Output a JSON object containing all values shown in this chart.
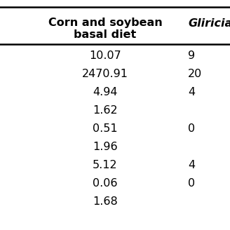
{
  "col1_header_line1": "Corn and soybean",
  "col1_header_line2": "basal diet",
  "col2_header": "Gliricia",
  "col1_values": [
    "10.07",
    "2470.91",
    "4.94",
    "1.62",
    "0.51",
    "1.96",
    "5.12",
    "0.06",
    "1.68"
  ],
  "col2_values": [
    "9",
    "20",
    "4",
    "",
    "0",
    "",
    "4",
    "0",
    ""
  ],
  "background_color": "#ffffff",
  "header_fontsize": 11.5,
  "cell_fontsize": 11.5,
  "fig_width": 3.28,
  "fig_height": 3.28,
  "dpi": 100
}
